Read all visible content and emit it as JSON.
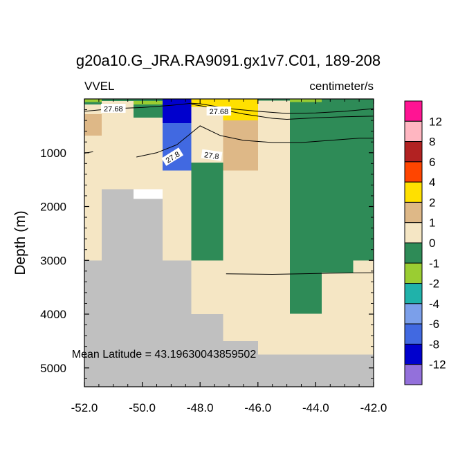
{
  "chart_data": {
    "type": "heatmap",
    "title": "g20a10.G_JRA.RA9091.gx1v7.C01, 189-208",
    "left_label": "VVEL",
    "right_label": "centimeter/s",
    "xlabel": "",
    "ylabel": "Depth (m)",
    "annotation": "Mean Latitude = 43.19630043859502",
    "xlim": [
      -52.0,
      -42.0
    ],
    "ylim": [
      5350,
      0
    ],
    "x_ticks": [
      -52.0,
      -50.0,
      -48.0,
      -46.0,
      -44.0,
      -42.0
    ],
    "x_tick_labels": [
      "-52.0",
      "-50.0",
      "-48.0",
      "-46.0",
      "-44.0",
      "-42.0"
    ],
    "y_ticks": [
      1000,
      2000,
      3000,
      4000,
      5000
    ],
    "y_tick_labels": [
      "1000",
      "2000",
      "3000",
      "4000",
      "5000"
    ],
    "colorbar": {
      "labels": [
        "12",
        "8",
        "6",
        "4",
        "2",
        "1",
        "0",
        "-1",
        "-2",
        "-4",
        "-6",
        "-8",
        "-12"
      ],
      "colors": [
        "#ff1493",
        "#ffb6c1",
        "#b22222",
        "#ff4500",
        "#ffe000",
        "#deb887",
        "#f5e6c4",
        "#2e8b57",
        "#9acd32",
        "#20b2aa",
        "#7b9fea",
        "#4169e1",
        "#0000cd",
        "#9370db"
      ]
    },
    "land_color": "#c0c0c0",
    "cells": [
      {
        "x": [
          -52.0,
          -51.4
        ],
        "y": [
          0,
          60
        ],
        "v": "-1"
      },
      {
        "x": [
          -52.0,
          -51.4
        ],
        "y": [
          60,
          100
        ],
        "v": "0"
      },
      {
        "x": [
          -52.0,
          -51.4
        ],
        "y": [
          100,
          280
        ],
        "v": "1"
      },
      {
        "x": [
          -52.0,
          -51.4
        ],
        "y": [
          280,
          680
        ],
        "v": "2"
      },
      {
        "x": [
          -52.0,
          -51.4
        ],
        "y": [
          680,
          3000
        ],
        "v": "1"
      },
      {
        "x": [
          -51.4,
          -49.3
        ],
        "y": [
          0,
          40
        ],
        "v": "0"
      },
      {
        "x": [
          -51.4,
          -49.3
        ],
        "y": [
          40,
          1680
        ],
        "v": "1"
      },
      {
        "x": [
          -50.3,
          -49.3
        ],
        "y": [
          40,
          100
        ],
        "v": "-1"
      },
      {
        "x": [
          -50.3,
          -49.3
        ],
        "y": [
          100,
          350
        ],
        "v": "0"
      },
      {
        "x": [
          -49.3,
          -48.3
        ],
        "y": [
          0,
          450
        ],
        "v": "-8"
      },
      {
        "x": [
          -49.3,
          -48.3
        ],
        "y": [
          450,
          1330
        ],
        "v": "-6"
      },
      {
        "x": [
          -49.3,
          -48.3
        ],
        "y": [
          1330,
          3000
        ],
        "v": "1"
      },
      {
        "x": [
          -48.3,
          -47.2
        ],
        "y": [
          0,
          1180
        ],
        "v": "1"
      },
      {
        "x": [
          -48.3,
          -47.2
        ],
        "y": [
          0,
          150
        ],
        "v": "4"
      },
      {
        "x": [
          -48.3,
          -47.2
        ],
        "y": [
          1180,
          3000
        ],
        "v": "0"
      },
      {
        "x": [
          -48.3,
          -47.2
        ],
        "y": [
          3000,
          4000
        ],
        "v": "1"
      },
      {
        "x": [
          -47.2,
          -46.0
        ],
        "y": [
          0,
          400
        ],
        "v": "4"
      },
      {
        "x": [
          -47.2,
          -46.0
        ],
        "y": [
          400,
          1330
        ],
        "v": "2"
      },
      {
        "x": [
          -47.2,
          -46.0
        ],
        "y": [
          1330,
          4500
        ],
        "v": "1"
      },
      {
        "x": [
          -46.0,
          -44.9
        ],
        "y": [
          0,
          30
        ],
        "v": "0"
      },
      {
        "x": [
          -46.0,
          -44.9
        ],
        "y": [
          30,
          4750
        ],
        "v": "1"
      },
      {
        "x": [
          -44.9,
          -42.0
        ],
        "y": [
          0,
          4750
        ],
        "v": "1"
      },
      {
        "x": [
          -44.9,
          -43.8
        ],
        "y": [
          0,
          60
        ],
        "v": "-1"
      },
      {
        "x": [
          -44.9,
          -43.8
        ],
        "y": [
          60,
          3990
        ],
        "v": "0"
      },
      {
        "x": [
          -43.8,
          -42.0
        ],
        "y": [
          0,
          40
        ],
        "v": "0"
      },
      {
        "x": [
          -43.8,
          -42.7
        ],
        "y": [
          40,
          3230
        ],
        "v": "0"
      },
      {
        "x": [
          -42.7,
          -42.0
        ],
        "y": [
          40,
          3000
        ],
        "v": "0"
      }
    ],
    "land": [
      {
        "x": [
          -52.0,
          -51.4
        ],
        "y": [
          3000,
          5350
        ]
      },
      {
        "x": [
          -51.4,
          -50.3
        ],
        "y": [
          1680,
          5350
        ]
      },
      {
        "x": [
          -50.3,
          -49.3
        ],
        "y": [
          1860,
          5350
        ]
      },
      {
        "x": [
          -49.3,
          -48.3
        ],
        "y": [
          3000,
          5350
        ]
      },
      {
        "x": [
          -48.3,
          -47.2
        ],
        "y": [
          4000,
          5350
        ]
      },
      {
        "x": [
          -47.2,
          -46.0
        ],
        "y": [
          4500,
          5350
        ]
      },
      {
        "x": [
          -46.0,
          -42.0
        ],
        "y": [
          4750,
          5350
        ]
      }
    ],
    "contours": [
      {
        "value": 27.68,
        "points": [
          [
            -52.0,
            230
          ],
          [
            -51.0,
            180
          ],
          [
            -50.0,
            160
          ],
          [
            -49.0,
            120
          ],
          [
            -48.3,
            80
          ],
          [
            -48.0,
            90
          ],
          [
            -47.0,
            180
          ],
          [
            -46.0,
            230
          ],
          [
            -45.0,
            270
          ],
          [
            -44.0,
            260
          ],
          [
            -43.0,
            230
          ],
          [
            -42.0,
            180
          ]
        ]
      },
      {
        "value": 27.68,
        "points": [
          [
            -48.3,
            100
          ],
          [
            -47.5,
            170
          ],
          [
            -46.5,
            280
          ],
          [
            -45.5,
            360
          ],
          [
            -45.0,
            380
          ],
          [
            -44.0,
            350
          ],
          [
            -43.0,
            330
          ],
          [
            -42.0,
            320
          ]
        ]
      },
      {
        "value": 27.8,
        "points": [
          [
            -52.0,
            1010
          ],
          [
            -51.7,
            980
          ]
        ]
      },
      {
        "value": 27.8,
        "points": [
          [
            -50.2,
            1080
          ],
          [
            -49.5,
            1000
          ],
          [
            -48.8,
            850
          ],
          [
            -48.0,
            500
          ],
          [
            -47.3,
            680
          ],
          [
            -46.5,
            770
          ],
          [
            -45.5,
            810
          ],
          [
            -44.5,
            810
          ],
          [
            -43.5,
            770
          ],
          [
            -42.5,
            730
          ],
          [
            -42.0,
            730
          ]
        ]
      },
      {
        "value": 27.8,
        "points": [
          [
            -47.1,
            3250
          ],
          [
            -45.5,
            3260
          ],
          [
            -44.5,
            3250
          ],
          [
            -43.5,
            3240
          ],
          [
            -42.0,
            3230
          ]
        ]
      }
    ],
    "contour_labels": [
      {
        "text": "27.68",
        "x": -51.0,
        "y": 180,
        "rotate": 0
      },
      {
        "text": "27.68",
        "x": -47.35,
        "y": 230,
        "rotate": 0
      },
      {
        "text": "27.8",
        "x": -48.95,
        "y": 1080,
        "rotate": -32
      },
      {
        "text": "27.8",
        "x": -47.6,
        "y": 1050,
        "rotate": 8
      }
    ]
  }
}
